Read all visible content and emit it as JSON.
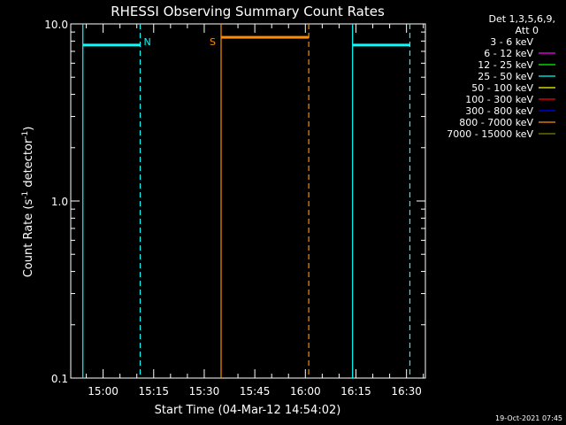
{
  "chart_data": {
    "type": "line",
    "title": "RHESSI Observing Summary Count Rates",
    "xlabel": "Start Time (04-Mar-12 14:54:02)",
    "ylabel_main": "Count Rate (s",
    "ylabel_sup1": "-1",
    "ylabel_mid": " detector",
    "ylabel_sup2": "-1",
    "ylabel_end": ")",
    "y_scale": "log",
    "ylim": [
      0.1,
      10.0
    ],
    "y_ticks": [
      {
        "value": 10.0,
        "label": "10.0"
      },
      {
        "value": 1.0,
        "label": "1.0"
      },
      {
        "value": 0.1,
        "label": "0.1"
      }
    ],
    "xlim_minutes": [
      14.0,
      96.5
    ],
    "x_ticks": [
      {
        "minutes": 60,
        "label": "15:00"
      },
      {
        "minutes": 75,
        "label": "15:15"
      },
      {
        "minutes": 90,
        "label": "15:30"
      },
      {
        "minutes": 105,
        "label": "15:45"
      },
      {
        "minutes": 120,
        "label": "16:00"
      },
      {
        "minutes": 135,
        "label": "16:15"
      },
      {
        "minutes": 150,
        "label": "16:30"
      }
    ],
    "legend": {
      "placement": "right",
      "header_line1": "Det 1,3,5,6,9,",
      "header_line2": "Att 0",
      "entries": [
        {
          "label": "3 - 6 keV",
          "color": "#000000"
        },
        {
          "label": "6 - 12 keV",
          "color": "#ff00ff"
        },
        {
          "label": "12 - 25 keV",
          "color": "#00ff00"
        },
        {
          "label": "25 - 50 keV",
          "color": "#00ffff"
        },
        {
          "label": "50 - 100 keV",
          "color": "#ffff00"
        },
        {
          "label": "100 - 300 keV",
          "color": "#ff0000"
        },
        {
          "label": "300 - 800 keV",
          "color": "#0000ff"
        },
        {
          "label": "800 - 7000 keV",
          "color": "#ff8c00"
        },
        {
          "label": "7000 - 15000 keV",
          "color": "#808000"
        }
      ]
    },
    "segments": [
      {
        "color": "#00ffff",
        "x0_time": "14:54",
        "x1_time": "15:11",
        "x0": 54.0,
        "x1": 71.0,
        "y": 7.6
      },
      {
        "color": "#ff8c00",
        "x0_time": "15:35",
        "x1_time": "16:01",
        "x0": 95.0,
        "x1": 121.0,
        "y": 8.4
      },
      {
        "color": "#00ffff",
        "x0_time": "16:14",
        "x1_time": "16:31",
        "x0": 134.0,
        "x1": 151.0,
        "y": 7.6
      }
    ],
    "markers": [
      {
        "label": "N",
        "color": "#00ffff",
        "minutes": 71.0,
        "style": "dashed"
      },
      {
        "label": "S",
        "color": "#ff8c00",
        "minutes": 95.0,
        "style": "solid"
      },
      {
        "label": "",
        "color": "#ff8c00",
        "minutes": 121.0,
        "style": "dashed"
      },
      {
        "label": "",
        "color": "#00ffff",
        "minutes": 54.0,
        "style": "solid"
      },
      {
        "label": "",
        "color": "#00ffff",
        "minutes": 134.0,
        "style": "solid"
      },
      {
        "label": "",
        "color": "#00ffff",
        "minutes": 151.0,
        "style": "dashed"
      }
    ],
    "grid": false
  },
  "timestamp": "19-Oct-2021 07:45"
}
